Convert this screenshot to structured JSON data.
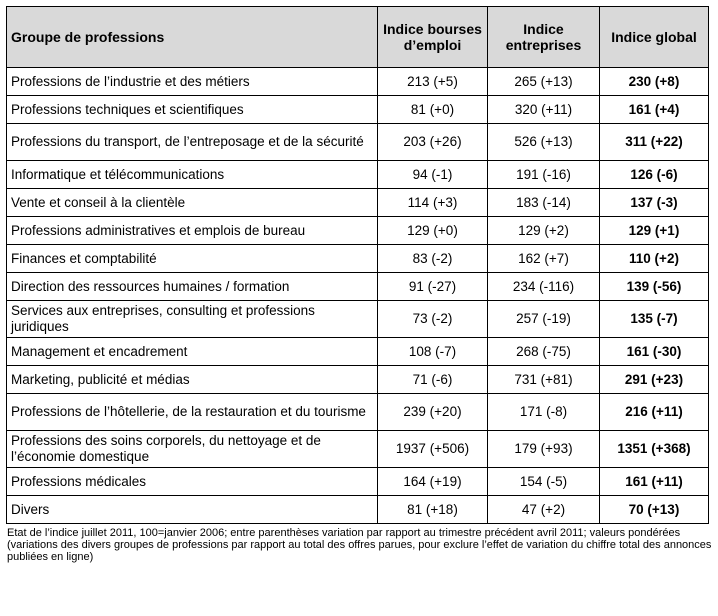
{
  "table": {
    "headers": [
      "Groupe de professions",
      "Indice bourses d’emploi",
      "Indice entreprises",
      "Indice global"
    ],
    "rows": [
      {
        "group": "Professions de l’industrie et des métiers",
        "bourses": "213 (+5)",
        "entreprises": "265 (+13)",
        "global": "230 (+8)"
      },
      {
        "group": "Professions techniques et scientifiques",
        "bourses": "81 (+0)",
        "entreprises": "320 (+11)",
        "global": "161 (+4)"
      },
      {
        "group": "Professions du transport, de l’entreposage et de la sécurité",
        "bourses": "203 (+26)",
        "entreprises": "526 (+13)",
        "global": "311 (+22)"
      },
      {
        "group": "Informatique et télécommunications",
        "bourses": "94 (-1)",
        "entreprises": "191 (-16)",
        "global": "126 (-6)"
      },
      {
        "group": "Vente et conseil à la clientèle",
        "bourses": "114 (+3)",
        "entreprises": "183 (-14)",
        "global": "137 (-3)"
      },
      {
        "group": "Professions administratives et emplois de bureau",
        "bourses": "129 (+0)",
        "entreprises": "129 (+2)",
        "global": "129 (+1)"
      },
      {
        "group": "Finances et comptabilité",
        "bourses": "83 (-2)",
        "entreprises": "162 (+7)",
        "global": "110 (+2)"
      },
      {
        "group": "Direction des ressources humaines / formation",
        "bourses": "91 (-27)",
        "entreprises": "234 (-116)",
        "global": "139 (-56)"
      },
      {
        "group": "Services aux entreprises, consulting et professions juridiques",
        "bourses": "73 (-2)",
        "entreprises": "257 (-19)",
        "global": "135 (-7)"
      },
      {
        "group": "Management et encadrement",
        "bourses": "108 (-7)",
        "entreprises": "268 (-75)",
        "global": "161 (-30)"
      },
      {
        "group": "Marketing, publicité et médias",
        "bourses": "71 (-6)",
        "entreprises": "731 (+81)",
        "global": "291 (+23)"
      },
      {
        "group": "Professions de l’hôtellerie, de la restauration et du tourisme",
        "bourses": "239 (+20)",
        "entreprises": "171 (-8)",
        "global": "216 (+11)"
      },
      {
        "group": "Professions des soins corporels, du nettoyage et de l’économie domestique",
        "bourses": "1937 (+506)",
        "entreprises": "179 (+93)",
        "global": "1351 (+368)"
      },
      {
        "group": "Professions médicales",
        "bourses": "164 (+19)",
        "entreprises": "154 (-5)",
        "global": "161 (+11)"
      },
      {
        "group": "Divers",
        "bourses": "81 (+18)",
        "entreprises": "47 (+2)",
        "global": "70 (+13)"
      }
    ]
  },
  "footnote": "Etat de l’indice juillet 2011, 100=janvier 2006; entre parenthèses variation par rapport au trimestre précédent avril 2011; valeurs pondérées (variations des divers groupes de professions par rapport au total des offres parues, pour exclure l’effet de variation du chiffre total des annonces publiées en ligne)"
}
